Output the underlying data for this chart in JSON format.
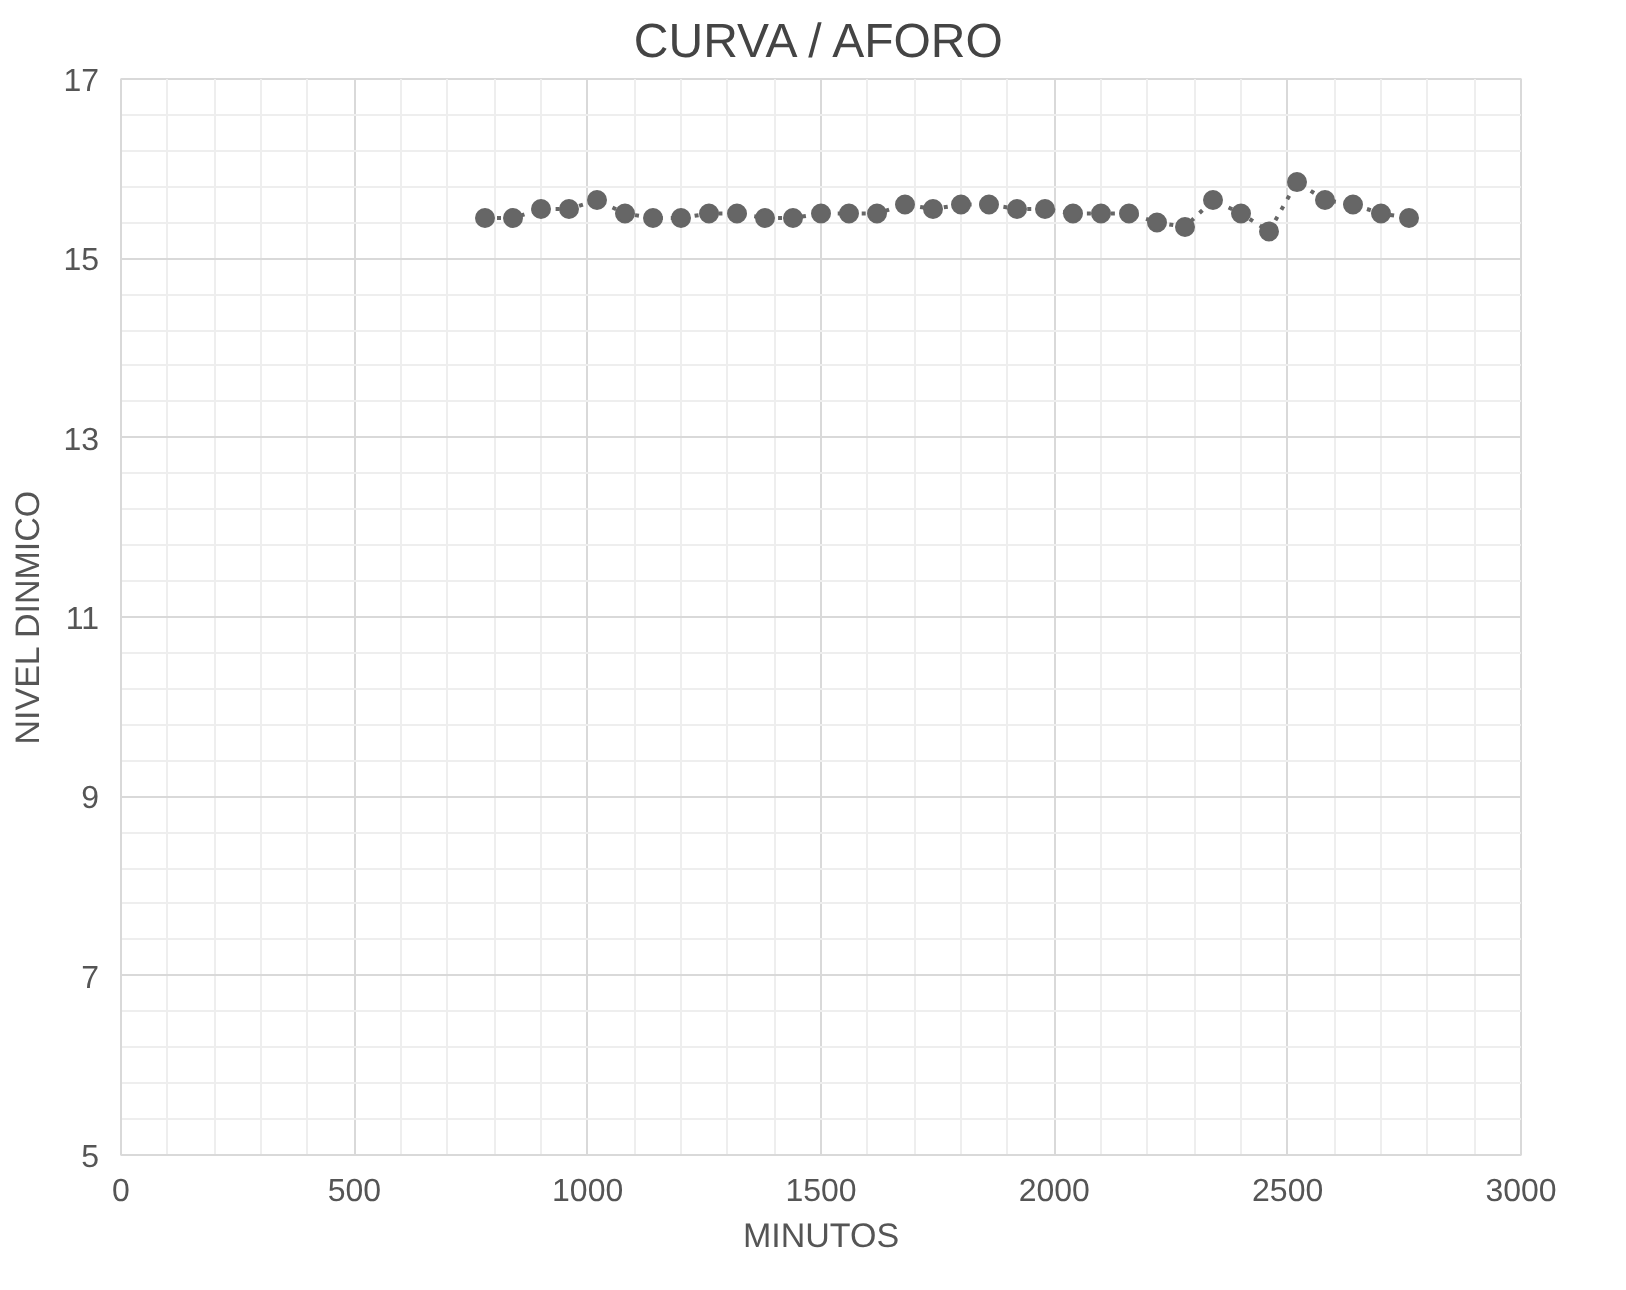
{
  "chart_data": {
    "type": "line",
    "title": "CURVA / AFORO",
    "xlabel": "MINUTOS",
    "ylabel": "NIVEL DINMICO",
    "x": [
      780,
      840,
      900,
      960,
      1020,
      1080,
      1140,
      1200,
      1260,
      1320,
      1380,
      1440,
      1500,
      1560,
      1620,
      1680,
      1740,
      1800,
      1860,
      1920,
      1980,
      2040,
      2100,
      2160,
      2220,
      2280,
      2340,
      2400,
      2460,
      2520,
      2580,
      2640,
      2700,
      2760
    ],
    "series": [
      {
        "color": "#666666",
        "values": [
          15.45,
          15.45,
          15.55,
          15.55,
          15.65,
          15.5,
          15.45,
          15.45,
          15.5,
          15.5,
          15.45,
          15.45,
          15.5,
          15.5,
          15.5,
          15.6,
          15.55,
          15.6,
          15.6,
          15.55,
          15.55,
          15.5,
          15.5,
          15.5,
          15.4,
          15.35,
          15.65,
          15.5,
          15.3,
          15.85,
          15.65,
          15.6,
          15.5,
          15.45
        ]
      }
    ],
    "xlim": [
      0,
      3000
    ],
    "ylim": [
      5,
      17
    ],
    "xticks": [
      0,
      500,
      1000,
      1500,
      2000,
      2500,
      3000
    ],
    "yticks": [
      5,
      7,
      9,
      11,
      13,
      15,
      17
    ],
    "grid": true,
    "marker": "circle",
    "line_style": "dotted"
  }
}
